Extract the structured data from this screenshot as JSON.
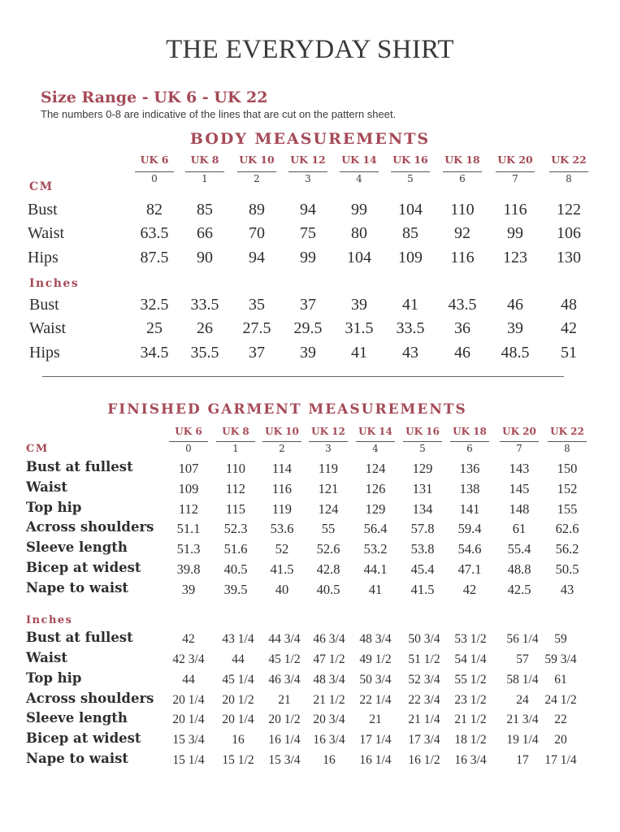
{
  "title": "THE EVERYDAY SHIRT",
  "size_range": "Size Range - UK 6 - UK 22",
  "note": "The numbers 0-8 are indicative of the lines that are cut on the pattern sheet.",
  "body_measurements": {
    "heading": "BODY MEASUREMENTS",
    "sizes": [
      "UK 6",
      "UK 8",
      "UK 10",
      "UK 12",
      "UK 14",
      "UK 16",
      "UK 18",
      "UK 20",
      "UK 22"
    ],
    "numbers": [
      "0",
      "1",
      "2",
      "3",
      "4",
      "5",
      "6",
      "7",
      "8"
    ],
    "cm_label": "CM",
    "cm_rows": [
      {
        "label": "Bust",
        "values": [
          "82",
          "85",
          "89",
          "94",
          "99",
          "104",
          "110",
          "116",
          "122"
        ]
      },
      {
        "label": "Waist",
        "values": [
          "63.5",
          "66",
          "70",
          "75",
          "80",
          "85",
          "92",
          "99",
          "106"
        ]
      },
      {
        "label": "Hips",
        "values": [
          "87.5",
          "90",
          "94",
          "99",
          "104",
          "109",
          "116",
          "123",
          "130"
        ]
      }
    ],
    "inches_label": "Inches",
    "inches_rows": [
      {
        "label": "Bust",
        "values": [
          "32.5",
          "33.5",
          "35",
          "37",
          "39",
          "41",
          "43.5",
          "46",
          "48"
        ]
      },
      {
        "label": "Waist",
        "values": [
          "25",
          "26",
          "27.5",
          "29.5",
          "31.5",
          "33.5",
          "36",
          "39",
          "42"
        ]
      },
      {
        "label": "Hips",
        "values": [
          "34.5",
          "35.5",
          "37",
          "39",
          "41",
          "43",
          "46",
          "48.5",
          "51"
        ]
      }
    ]
  },
  "finished_garment": {
    "heading": "FINISHED GARMENT  MEASUREMENTS",
    "sizes": [
      "UK 6",
      "UK 8",
      "UK 10",
      "UK 12",
      "UK 14",
      "UK 16",
      "UK 18",
      "UK 20",
      "UK 22"
    ],
    "numbers": [
      "0",
      "1",
      "2",
      "3",
      "4",
      "5",
      "6",
      "7",
      "8"
    ],
    "cm_label": "CM",
    "cm_rows": [
      {
        "label": "Bust at fullest",
        "values": [
          "107",
          "110",
          "114",
          "119",
          "124",
          "129",
          "136",
          "143",
          "150"
        ]
      },
      {
        "label": "Waist",
        "values": [
          "109",
          "112",
          "116",
          "121",
          "126",
          "131",
          "138",
          "145",
          "152"
        ]
      },
      {
        "label": "Top hip",
        "values": [
          "112",
          "115",
          "119",
          "124",
          "129",
          "134",
          "141",
          "148",
          "155"
        ]
      },
      {
        "label": "Across shoulders",
        "values": [
          "51.1",
          "52.3",
          "53.6",
          "55",
          "56.4",
          "57.8",
          "59.4",
          "61",
          "62.6"
        ]
      },
      {
        "label": "Sleeve length",
        "values": [
          "51.3",
          "51.6",
          "52",
          "52.6",
          "53.2",
          "53.8",
          "54.6",
          "55.4",
          "56.2"
        ]
      },
      {
        "label": "Bicep at widest",
        "values": [
          "39.8",
          "40.5",
          "41.5",
          "42.8",
          "44.1",
          "45.4",
          "47.1",
          "48.8",
          "50.5"
        ]
      },
      {
        "label": "Nape to waist",
        "values": [
          "39",
          "39.5",
          "40",
          "40.5",
          "41",
          "41.5",
          "42",
          "42.5",
          "43"
        ]
      }
    ],
    "inches_label": "Inches",
    "inches_rows": [
      {
        "label": "Bust at fullest",
        "values": [
          "42",
          "43 1/4",
          "44 3/4",
          "46 3/4",
          "48 3/4",
          "50 3/4",
          "53 1/2",
          "56 1/4",
          "59"
        ]
      },
      {
        "label": "Waist",
        "values": [
          "42 3/4",
          "44",
          "45 1/2",
          "47 1/2",
          "49 1/2",
          "51 1/2",
          "54 1/4",
          "57",
          "59 3/4"
        ]
      },
      {
        "label": "Top hip",
        "values": [
          "44",
          "45 1/4",
          "46 3/4",
          "48 3/4",
          "50 3/4",
          "52 3/4",
          "55 1/2",
          "58 1/4",
          "61"
        ]
      },
      {
        "label": "Across shoulders",
        "values": [
          "20 1/4",
          "20 1/2",
          "21",
          "21 1/2",
          "22 1/4",
          "22 3/4",
          "23 1/2",
          "24",
          "24 1/2"
        ]
      },
      {
        "label": "Sleeve length",
        "values": [
          "20 1/4",
          "20 1/4",
          "20 1/2",
          "20 3/4",
          "21",
          "21 1/4",
          "21 1/2",
          "21 3/4",
          "22"
        ]
      },
      {
        "label": "Bicep at widest",
        "values": [
          "15 3/4",
          "16",
          "16 1/4",
          "16 3/4",
          "17 1/4",
          "17 3/4",
          "18 1/2",
          "19 1/4",
          "20"
        ]
      },
      {
        "label": "Nape to waist",
        "values": [
          "15 1/4",
          "15 1/2",
          "15 3/4",
          "16",
          "16 1/4",
          "16 1/2",
          "16 3/4",
          "17",
          "17 1/4"
        ]
      }
    ]
  },
  "colors": {
    "accent": "#a54a57",
    "text": "#2e2e2e",
    "rule": "#666666"
  }
}
